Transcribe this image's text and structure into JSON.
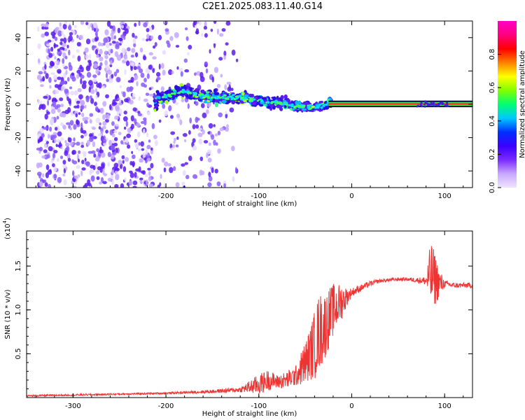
{
  "title": "C2E1.2025.083.11.40.G14",
  "chart_data": [
    {
      "type": "heatmap",
      "xlabel": "Height of straight line (km)",
      "ylabel": "Frequency (Hz)",
      "xlim": [
        -350,
        130
      ],
      "ylim": [
        -50,
        50
      ],
      "xticks": [
        -300,
        -200,
        -100,
        0,
        100
      ],
      "yticks": [
        -40,
        -20,
        0,
        20,
        40
      ],
      "colorbar": {
        "label": "Normalized spectral amplitude",
        "range": [
          0.0,
          1.0
        ],
        "ticks": [
          0.0,
          0.2,
          0.4,
          0.6,
          0.8
        ],
        "colors": [
          "#f0e4ff",
          "#c8a8ff",
          "#7a2aff",
          "#3a00ff",
          "#0030ff",
          "#00c8ff",
          "#00ff70",
          "#80ff00",
          "#ffff00",
          "#ff8000",
          "#ff0000",
          "#ff0080",
          "#ff00c8"
        ]
      },
      "features": {
        "noise_region_x": [
          -350,
          -135
        ],
        "signal_track": [
          {
            "x": -210,
            "freq": 3
          },
          {
            "x": -180,
            "freq": 8
          },
          {
            "x": -160,
            "freq": 5
          },
          {
            "x": -140,
            "freq": 4
          },
          {
            "x": -120,
            "freq": 4
          },
          {
            "x": -100,
            "freq": 2
          },
          {
            "x": -80,
            "freq": 1
          },
          {
            "x": -60,
            "freq": -1
          },
          {
            "x": -40,
            "freq": -2
          },
          {
            "x": -20,
            "freq": 1
          },
          {
            "x": 0,
            "freq": 0.5
          },
          {
            "x": 130,
            "freq": 0.5
          }
        ]
      }
    },
    {
      "type": "line",
      "xlabel": "Height of straight line (km)",
      "ylabel": "SNR (10 * v/v)",
      "multiplier_label": "(x10",
      "multiplier_exp": "4",
      "xlim": [
        -350,
        130
      ],
      "ylim": [
        0,
        1.9
      ],
      "xticks": [
        -300,
        -200,
        -100,
        0,
        100
      ],
      "yticks": [
        0.5,
        1.0,
        1.5
      ],
      "ytick_labels": [
        "0.5",
        "1.0",
        "1.5"
      ],
      "color": "#ee3333",
      "series": [
        {
          "x": [
            -350,
            -300,
            -250,
            -200,
            -150,
            -120,
            -100,
            -90,
            -80,
            -70,
            -60,
            -50,
            -45,
            -40,
            -35,
            -30,
            -25,
            -20,
            -15,
            -10,
            -5,
            0,
            10,
            20,
            30,
            40,
            50,
            60,
            70,
            80,
            85,
            90,
            95,
            100,
            110,
            120,
            130
          ],
          "values": [
            0.02,
            0.03,
            0.04,
            0.05,
            0.07,
            0.09,
            0.15,
            0.2,
            0.18,
            0.2,
            0.25,
            0.4,
            0.5,
            0.6,
            0.75,
            0.8,
            0.9,
            1.0,
            1.05,
            1.1,
            1.15,
            1.2,
            1.25,
            1.3,
            1.33,
            1.34,
            1.35,
            1.35,
            1.34,
            1.33,
            1.4,
            1.35,
            1.3,
            1.3,
            1.28,
            1.28,
            1.28
          ],
          "noise": [
            0.01,
            0.01,
            0.01,
            0.01,
            0.02,
            0.03,
            0.12,
            0.12,
            0.08,
            0.1,
            0.12,
            0.25,
            0.3,
            0.4,
            0.45,
            0.4,
            0.35,
            0.3,
            0.25,
            0.2,
            0.1,
            0.05,
            0.04,
            0.03,
            0.02,
            0.02,
            0.02,
            0.02,
            0.03,
            0.05,
            0.4,
            0.3,
            0.15,
            0.04,
            0.03,
            0.03,
            0.03
          ]
        }
      ]
    }
  ]
}
